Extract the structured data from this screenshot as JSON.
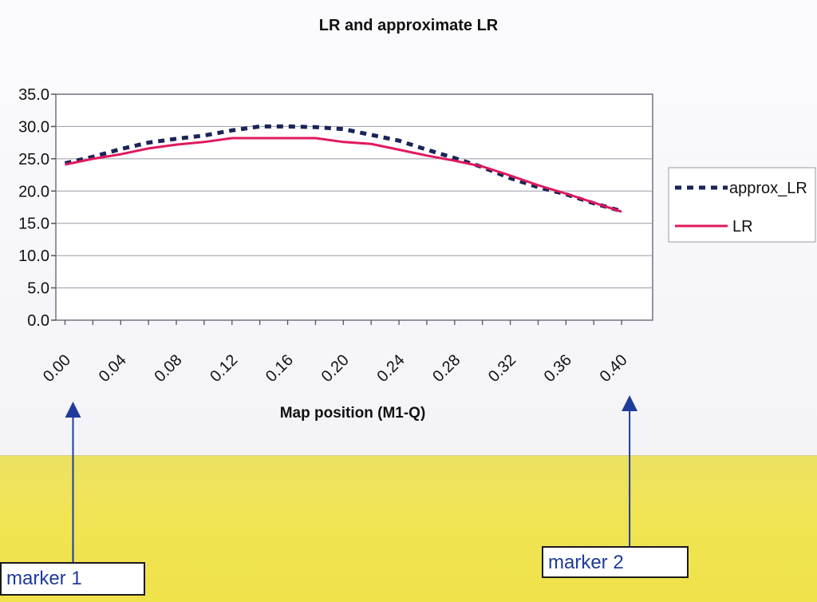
{
  "chart_data": {
    "type": "line",
    "title": "LR and approximate LR",
    "xlabel": "Map position (M1-Q)",
    "ylabel": "",
    "xlim": [
      -0.0066,
      0.4223
    ],
    "ylim": [
      0,
      35
    ],
    "x_ticks": [
      "0.00",
      "0.04",
      "0.08",
      "0.12",
      "0.16",
      "0.20",
      "0.24",
      "0.28",
      "0.32",
      "0.36",
      "0.40"
    ],
    "y_ticks": [
      "0.0",
      "5.0",
      "10.0",
      "15.0",
      "20.0",
      "25.0",
      "30.0",
      "35.0"
    ],
    "grid": true,
    "legend_position": "right",
    "x": [
      0.0,
      0.02,
      0.04,
      0.06,
      0.08,
      0.1,
      0.12,
      0.14,
      0.16,
      0.18,
      0.2,
      0.22,
      0.24,
      0.26,
      0.28,
      0.3,
      0.32,
      0.34,
      0.36,
      0.38,
      0.4
    ],
    "series": [
      {
        "name": "approx_LR",
        "style": "dashed",
        "color": "#1a2457",
        "values": [
          24.3,
          25.3,
          26.5,
          27.5,
          28.1,
          28.6,
          29.4,
          30.0,
          30.0,
          29.9,
          29.6,
          28.7,
          27.8,
          26.4,
          25.1,
          23.7,
          22.0,
          20.6,
          19.5,
          18.1,
          16.9
        ]
      },
      {
        "name": "LR",
        "style": "solid",
        "color": "#e0195f",
        "values": [
          24.1,
          25.0,
          25.7,
          26.6,
          27.2,
          27.6,
          28.2,
          28.2,
          28.2,
          28.2,
          27.6,
          27.3,
          26.4,
          25.5,
          24.7,
          23.8,
          22.4,
          20.9,
          19.6,
          18.2,
          16.8
        ]
      }
    ]
  },
  "annotations": {
    "marker1": {
      "label": "marker 1",
      "x": 0.0
    },
    "marker2": {
      "label": "marker 2",
      "x": 0.4
    }
  },
  "colors": {
    "arrow": "#1f3b9a",
    "grid": "#9a9aa8",
    "axis": "#555555"
  }
}
